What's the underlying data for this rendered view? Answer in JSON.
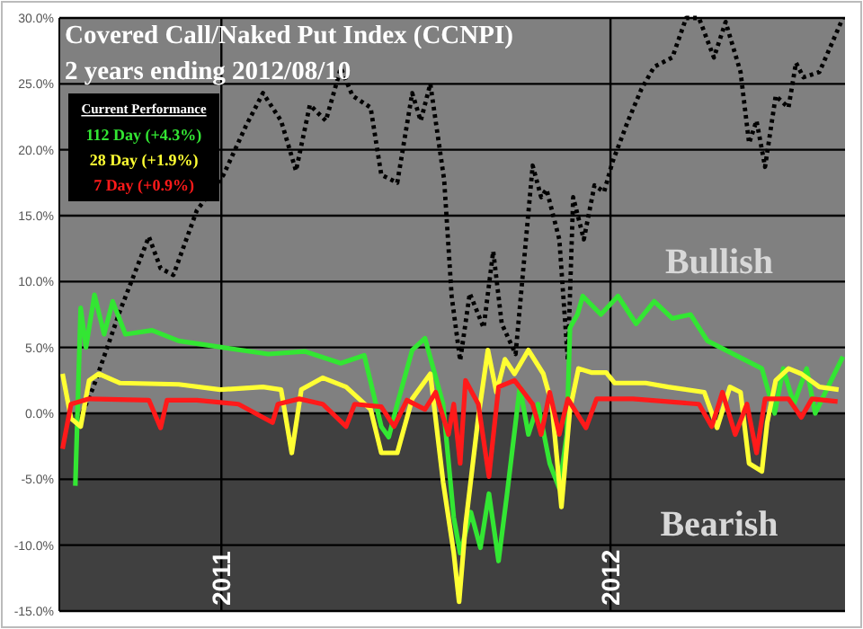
{
  "chart_data": {
    "type": "line",
    "title": "Covered Call/Naked Put Index (CCNPI)",
    "subtitle": "2 years ending 2012/08/10",
    "legend_title": "Current Performance",
    "legend": "top left",
    "grid": true,
    "xlim": [
      "2010-08-02",
      "2012-08-08"
    ],
    "xticks": [
      {
        "value": "2011-01-01",
        "label": "2011"
      },
      {
        "value": "2012-01-01",
        "label": "2012"
      }
    ],
    "ylim": [
      -15,
      30
    ],
    "yticks": [
      {
        "value": -15,
        "label": "-15.0%"
      },
      {
        "value": -10,
        "label": "-10.0%"
      },
      {
        "value": -5,
        "label": "-5.0%"
      },
      {
        "value": 0,
        "label": "0.0%"
      },
      {
        "value": 5,
        "label": "5.0%"
      },
      {
        "value": 10,
        "label": "10.0%"
      },
      {
        "value": 15,
        "label": "15.0%"
      },
      {
        "value": 20,
        "label": "20.0%"
      },
      {
        "value": 25,
        "label": "25.0%"
      },
      {
        "value": 30,
        "label": "30.0%"
      }
    ],
    "bands": [
      {
        "axis": "y",
        "from": 0,
        "to": 30,
        "color": "#808080"
      },
      {
        "axis": "y",
        "from": -15,
        "to": 0,
        "color": "#404040"
      }
    ],
    "annotations": [
      "Bullish",
      "Bearish"
    ],
    "series": [
      {
        "color": "#000000",
        "line_style": "dotted",
        "x": [
          "2010-08-18",
          "2010-09-03",
          "2010-09-28",
          "2010-10-25",
          "2010-11-05",
          "2010-11-17",
          "2010-12-09",
          "2011-01-03",
          "2011-01-24",
          "2011-02-09",
          "2011-02-26",
          "2011-03-12",
          "2011-03-25",
          "2011-04-09",
          "2011-04-23",
          "2011-05-04",
          "2011-05-21",
          "2011-05-31",
          "2011-06-15",
          "2011-06-29",
          "2011-07-07",
          "2011-07-16",
          "2011-07-29",
          "2011-08-05",
          "2011-08-13",
          "2011-08-22",
          "2011-09-04",
          "2011-09-13",
          "2011-09-21",
          "2011-10-04",
          "2011-10-20",
          "2011-10-28",
          "2011-11-02",
          "2011-11-14",
          "2011-11-22",
          "2011-11-27",
          "2011-12-07",
          "2011-12-17",
          "2011-12-26",
          "2012-01-03",
          "2012-01-17",
          "2012-01-30",
          "2012-02-11",
          "2012-02-28",
          "2012-03-12",
          "2012-03-24",
          "2012-04-07",
          "2012-04-18",
          "2012-05-02",
          "2012-05-10",
          "2012-05-17",
          "2012-05-25",
          "2012-06-04",
          "2012-06-16",
          "2012-06-23",
          "2012-06-30",
          "2012-07-15",
          "2012-08-06"
        ],
        "values": [
          -1,
          2,
          7.8,
          13.4,
          11,
          10.5,
          15.4,
          18.1,
          21.8,
          24.3,
          22.2,
          18.4,
          23.4,
          22.2,
          26.2,
          24.1,
          23.2,
          18.1,
          17.5,
          24.3,
          22.2,
          25,
          17.7,
          8.9,
          4,
          9.1,
          6.5,
          12.3,
          6.8,
          4.5,
          18.8,
          16.4,
          17,
          13.2,
          4,
          16.4,
          13.2,
          17.3,
          16.8,
          19.1,
          22.1,
          24.6,
          26.3,
          27,
          30,
          30,
          27,
          29.7,
          25.9,
          20.5,
          22.2,
          18.7,
          24.1,
          23.2,
          26.6,
          25.5,
          25.9,
          30
        ]
      },
      {
        "name": "112 Day (+4.3%)",
        "color": "#33e633",
        "line_style": "solid",
        "x": [
          "2010-08-17",
          "2010-08-22",
          "2010-08-27",
          "2010-09-04",
          "2010-09-13",
          "2010-09-21",
          "2010-10-03",
          "2010-10-28",
          "2010-11-22",
          "2011-01-02",
          "2011-02-14",
          "2011-03-20",
          "2011-04-23",
          "2011-05-15",
          "2011-05-31",
          "2011-06-07",
          "2011-06-15",
          "2011-06-29",
          "2011-07-11",
          "2011-07-28",
          "2011-08-07",
          "2011-08-13",
          "2011-08-23",
          "2011-09-01",
          "2011-09-09",
          "2011-09-18",
          "2011-09-26",
          "2011-10-08",
          "2011-10-16",
          "2011-10-25",
          "2011-11-05",
          "2011-11-14",
          "2011-11-21",
          "2011-11-24",
          "2011-12-01",
          "2011-12-06",
          "2011-12-23",
          "2012-01-08",
          "2012-01-25",
          "2012-02-11",
          "2012-02-28",
          "2012-03-16",
          "2012-04-01",
          "2012-04-18",
          "2012-05-05",
          "2012-05-22",
          "2012-06-03",
          "2012-06-11",
          "2012-06-21",
          "2012-07-03",
          "2012-07-11",
          "2012-07-23",
          "2012-08-06"
        ],
        "values": [
          -5.5,
          8,
          5,
          9,
          6,
          8.5,
          6,
          6.3,
          5.5,
          5,
          4.5,
          4.7,
          3.8,
          4.4,
          -1,
          -1.8,
          0.7,
          4.8,
          5.7,
          0.7,
          -7.9,
          -10.6,
          -7.5,
          -10.2,
          -6.1,
          -11.2,
          -6.1,
          2,
          -1.6,
          0.7,
          -3.8,
          -5.7,
          -1.6,
          6.5,
          7.5,
          8.9,
          7.5,
          8.9,
          6.8,
          8.5,
          7.2,
          7.5,
          5.5,
          4.8,
          4.1,
          3.4,
          0,
          3.4,
          0.7,
          3.4,
          0,
          2,
          4.3
        ]
      },
      {
        "name": "28 Day (+1.9%)",
        "color": "#ffff33",
        "line_style": "solid",
        "x": [
          "2010-08-05",
          "2010-08-13",
          "2010-08-22",
          "2010-08-30",
          "2010-09-08",
          "2010-09-28",
          "2010-11-22",
          "2010-12-31",
          "2011-02-09",
          "2011-02-26",
          "2011-03-08",
          "2011-03-17",
          "2011-04-06",
          "2011-04-28",
          "2011-05-21",
          "2011-05-31",
          "2011-06-15",
          "2011-06-29",
          "2011-07-16",
          "2011-07-28",
          "2011-08-07",
          "2011-08-12",
          "2011-08-18",
          "2011-08-30",
          "2011-09-08",
          "2011-09-16",
          "2011-09-24",
          "2011-10-03",
          "2011-10-16",
          "2011-10-30",
          "2011-11-07",
          "2011-11-16",
          "2011-11-24",
          "2011-12-02",
          "2011-12-14",
          "2011-12-28",
          "2012-01-05",
          "2012-02-03",
          "2012-02-24",
          "2012-03-29",
          "2012-04-10",
          "2012-04-22",
          "2012-05-02",
          "2012-05-10",
          "2012-05-22",
          "2012-05-27",
          "2012-06-04",
          "2012-06-16",
          "2012-06-28",
          "2012-07-15",
          "2012-08-02"
        ],
        "values": [
          3,
          -0.4,
          -1,
          2.5,
          3,
          2.3,
          2.2,
          1.8,
          2,
          1.8,
          -3,
          1.8,
          2.7,
          2,
          0.3,
          -3,
          -3,
          1.1,
          3,
          -5.2,
          -10.6,
          -14.3,
          -8.5,
          -0.3,
          4.8,
          1.6,
          4.1,
          3,
          4.8,
          3,
          0.7,
          -7.1,
          0.3,
          3.4,
          3.1,
          3.1,
          2.3,
          2.3,
          2,
          1.6,
          -1.1,
          2,
          1.6,
          -3.8,
          -4.4,
          -0.7,
          2.5,
          3.4,
          3,
          2,
          1.8
        ]
      },
      {
        "name": "7 Day (+0.9%)",
        "color": "#ff1a1a",
        "line_style": "solid",
        "x": [
          "2010-08-05",
          "2010-08-13",
          "2010-08-30",
          "2010-10-25",
          "2010-11-05",
          "2010-11-11",
          "2010-12-09",
          "2011-01-17",
          "2011-02-18",
          "2011-02-23",
          "2011-03-15",
          "2011-04-06",
          "2011-04-28",
          "2011-05-06",
          "2011-05-31",
          "2011-06-12",
          "2011-06-24",
          "2011-07-11",
          "2011-07-21",
          "2011-08-02",
          "2011-08-07",
          "2011-08-13",
          "2011-08-18",
          "2011-08-30",
          "2011-09-09",
          "2011-09-18",
          "2011-10-03",
          "2011-10-20",
          "2011-10-28",
          "2011-11-05",
          "2011-11-14",
          "2011-11-22",
          "2011-12-09",
          "2011-12-19",
          "2012-01-22",
          "2012-03-24",
          "2012-04-05",
          "2012-04-15",
          "2012-04-27",
          "2012-05-08",
          "2012-05-17",
          "2012-05-25",
          "2012-06-16",
          "2012-06-28",
          "2012-07-08",
          "2012-08-01"
        ],
        "values": [
          -2.7,
          0.7,
          1.1,
          1,
          -1.1,
          1,
          1,
          0.7,
          -0.7,
          0.7,
          1.1,
          0.7,
          -1,
          0.7,
          0.5,
          -1,
          1,
          0.3,
          1.6,
          -1.6,
          0.7,
          -3.8,
          2.5,
          0.7,
          -4.8,
          2,
          2.5,
          0.7,
          -1.6,
          1.6,
          -1.6,
          1.1,
          -1.1,
          1.1,
          1.1,
          0.7,
          -1,
          1.6,
          -1.6,
          0.7,
          -3,
          1.1,
          1.1,
          -0.3,
          1.1,
          0.9
        ]
      }
    ]
  }
}
